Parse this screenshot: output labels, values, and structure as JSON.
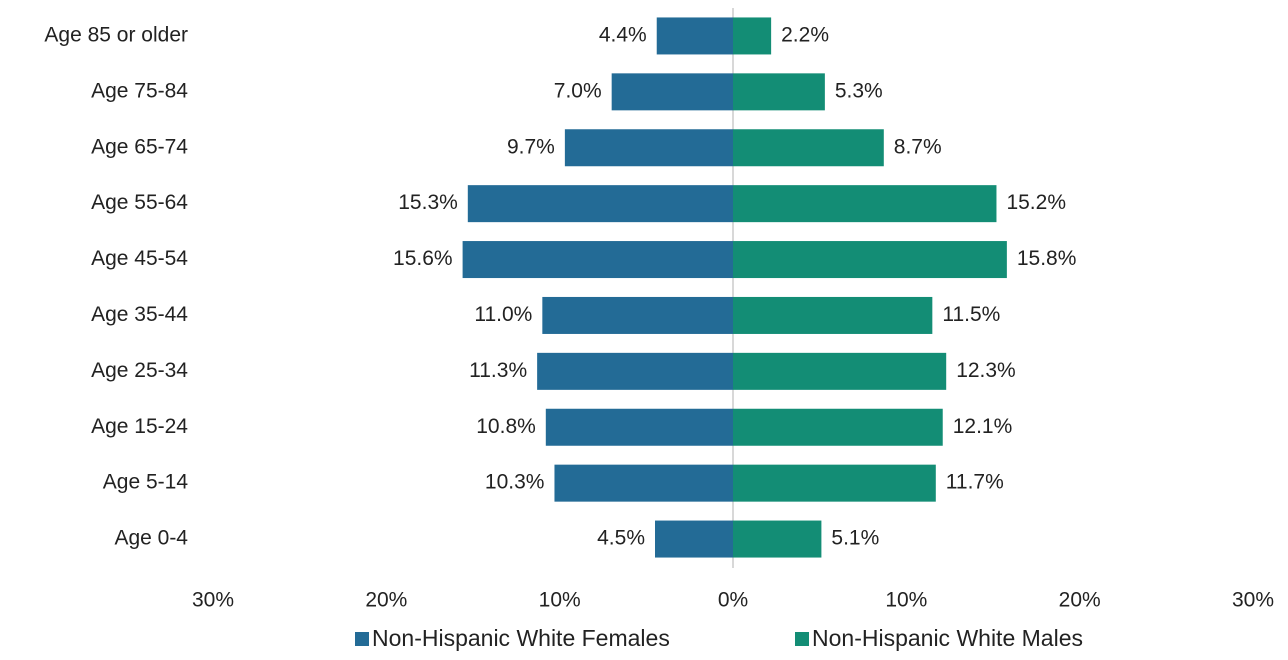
{
  "chart_data": {
    "type": "pyramid",
    "categories": [
      "Age 85 or older",
      "Age 75-84",
      "Age 65-74",
      "Age 55-64",
      "Age 45-54",
      "Age 35-44",
      "Age 25-34",
      "Age 15-24",
      "Age 5-14",
      "Age 0-4"
    ],
    "series": [
      {
        "name": "Non-Hispanic White Females",
        "color": "#236b96",
        "side": "left",
        "values": [
          4.4,
          7.0,
          9.7,
          15.3,
          15.6,
          11.0,
          11.3,
          10.8,
          10.3,
          4.5
        ],
        "value_labels": [
          "4.4%",
          "7.0%",
          "9.7%",
          "15.3%",
          "15.6%",
          "11.0%",
          "11.3%",
          "10.8%",
          "10.3%",
          "4.5%"
        ]
      },
      {
        "name": "Non-Hispanic White Males",
        "color": "#138d75",
        "side": "right",
        "values": [
          2.2,
          5.3,
          8.7,
          15.2,
          15.8,
          11.5,
          12.3,
          12.1,
          11.7,
          5.1
        ],
        "value_labels": [
          "2.2%",
          "5.3%",
          "8.7%",
          "15.2%",
          "15.8%",
          "11.5%",
          "12.3%",
          "12.1%",
          "11.7%",
          "5.1%"
        ]
      }
    ],
    "xlim": [
      -30,
      30
    ],
    "xticks": [
      {
        "value": -30,
        "label": "30%"
      },
      {
        "value": -20,
        "label": "20%"
      },
      {
        "value": -10,
        "label": "10%"
      },
      {
        "value": 0,
        "label": "0%"
      },
      {
        "value": 10,
        "label": "10%"
      },
      {
        "value": 20,
        "label": "20%"
      },
      {
        "value": 30,
        "label": "30%"
      }
    ],
    "legend": "bottom"
  }
}
